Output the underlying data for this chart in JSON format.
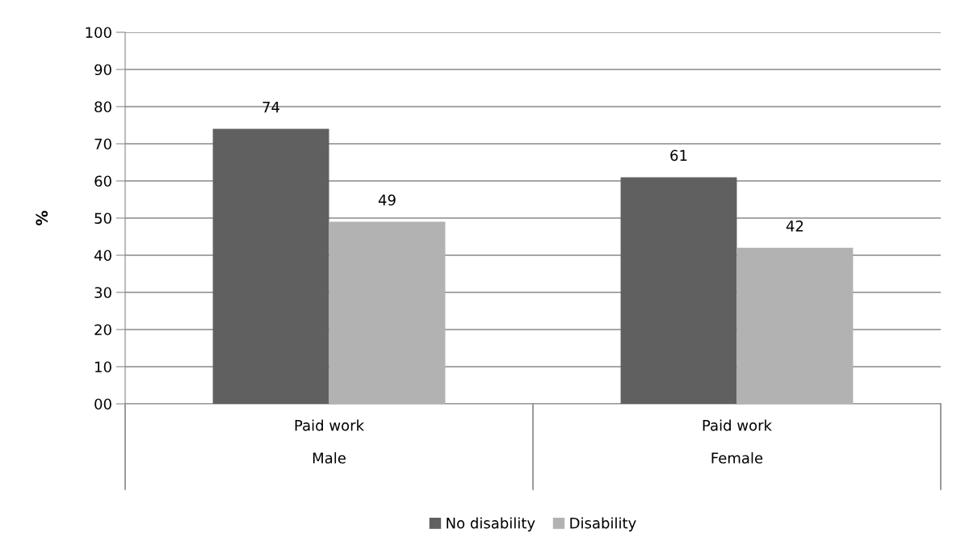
{
  "chart_data": {
    "type": "bar",
    "ylabel": "%",
    "categories": [
      "Paid work\n\nMale",
      "Paid work\n\nFemale"
    ],
    "series": [
      {
        "name": "No disability",
        "color": "#606060",
        "values": [
          74,
          61
        ]
      },
      {
        "name": "Disability",
        "color": "#b2b2b2",
        "values": [
          49,
          42
        ]
      }
    ],
    "ylim": [
      0,
      100
    ],
    "yticks": [
      {
        "value": 0,
        "label": "00"
      },
      10,
      20,
      30,
      40,
      50,
      60,
      70,
      80,
      90,
      100
    ],
    "grid": "y",
    "legend": "bottom",
    "data_labels": true
  }
}
